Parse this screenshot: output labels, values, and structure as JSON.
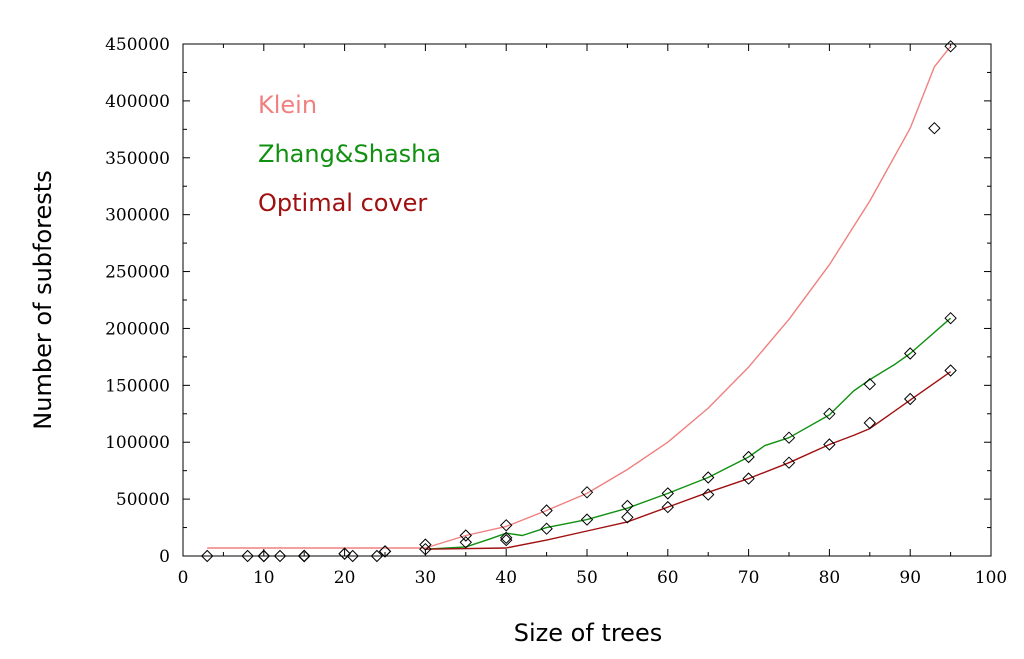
{
  "chart_data": {
    "type": "line",
    "title": "",
    "xlabel": "Size of trees",
    "ylabel": "Number of subforests",
    "xlim": [
      0,
      100
    ],
    "ylim": [
      0,
      450000
    ],
    "x_ticks": [
      "0",
      "10",
      "20",
      "30",
      "40",
      "50",
      "60",
      "70",
      "80",
      "90",
      "100"
    ],
    "y_ticks": [
      "0",
      "50000",
      "100000",
      "150000",
      "200000",
      "250000",
      "300000",
      "350000",
      "400000",
      "450000"
    ],
    "grid": false,
    "legend_position": "top-left",
    "series": [
      {
        "name": "Klein",
        "color": "#f08080",
        "x": [
          3,
          10,
          20,
          30,
          35,
          40,
          45,
          50,
          55,
          60,
          65,
          70,
          75,
          80,
          85,
          90,
          93,
          95
        ],
        "y": [
          7000,
          7000,
          7000,
          7000,
          18000,
          26000,
          40000,
          55000,
          76000,
          100000,
          130000,
          166000,
          208000,
          256000,
          312000,
          376000,
          430000,
          448000
        ]
      },
      {
        "name": "Zhang&Shasha",
        "color": "#109010",
        "x": [
          30,
          35,
          38,
          40,
          42,
          45,
          50,
          55,
          60,
          65,
          70,
          72,
          75,
          80,
          83,
          85,
          88,
          90,
          95
        ],
        "y": [
          6000,
          8000,
          15000,
          20000,
          18000,
          25000,
          32000,
          42000,
          55000,
          69000,
          87000,
          97000,
          104000,
          124000,
          145000,
          155000,
          168000,
          178000,
          209000
        ]
      },
      {
        "name": "Optimal cover",
        "color": "#a01010",
        "x": [
          30,
          40,
          45,
          50,
          55,
          60,
          65,
          70,
          75,
          80,
          83,
          85,
          90,
          95
        ],
        "y": [
          6000,
          7000,
          14000,
          22000,
          30000,
          43000,
          56000,
          68000,
          82000,
          98000,
          106000,
          112000,
          137000,
          162000
        ]
      }
    ],
    "markers": {
      "shape": "diamond",
      "x": [
        3,
        8,
        10,
        10,
        12,
        15,
        15,
        15,
        20,
        20,
        21,
        24,
        25,
        25,
        30,
        30,
        35,
        35,
        40,
        40,
        40,
        45,
        45,
        50,
        50,
        55,
        55,
        60,
        60,
        65,
        65,
        70,
        70,
        75,
        75,
        80,
        80,
        85,
        85,
        90,
        90,
        93,
        95,
        95,
        95
      ],
      "y": [
        0,
        0,
        0,
        0,
        0,
        0,
        0,
        0,
        2000,
        2000,
        0,
        0,
        4000,
        4000,
        6000,
        10000,
        12000,
        18000,
        14000,
        16000,
        27000,
        24000,
        40000,
        32000,
        56000,
        34000,
        44000,
        43000,
        55000,
        54000,
        69000,
        68000,
        87000,
        82000,
        104000,
        98000,
        125000,
        117000,
        151000,
        138000,
        178000,
        376000,
        163000,
        209000,
        448000
      ]
    }
  }
}
